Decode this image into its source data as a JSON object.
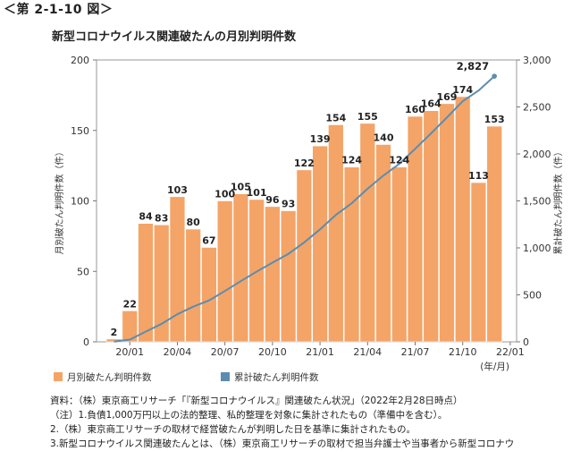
{
  "figure_label": "＜第 2-1-10 図＞",
  "chart_data": {
    "type": "bar+line",
    "title": "新型コロナウイルス関連破たんの月別判明件数",
    "ylabel_left": "月別破たん判明件数（件）",
    "ylabel_right": "累計破たん判明件数（件）",
    "x_unit": "(年/月)",
    "ylim_left": [
      0,
      200
    ],
    "ylim_right": [
      0,
      3000
    ],
    "yticks_left": [
      "0",
      "50",
      "100",
      "150",
      "200"
    ],
    "yticks_right": [
      "0",
      "500",
      "1,000",
      "1,500",
      "2,000",
      "2,500",
      "3,000"
    ],
    "x_tick_labels": [
      {
        "label": "20/01",
        "index": 1
      },
      {
        "label": "20/04",
        "index": 4
      },
      {
        "label": "20/07",
        "index": 7
      },
      {
        "label": "20/10",
        "index": 10
      },
      {
        "label": "21/01",
        "index": 13
      },
      {
        "label": "21/04",
        "index": 16
      },
      {
        "label": "21/07",
        "index": 19
      },
      {
        "label": "21/10",
        "index": 22
      },
      {
        "label": "22/01",
        "index": 25
      }
    ],
    "series": [
      {
        "name": "月別破たん判明件数",
        "kind": "bar",
        "color": "#F4A467",
        "values": [
          2,
          22,
          84,
          83,
          103,
          80,
          67,
          100,
          105,
          101,
          96,
          93,
          122,
          139,
          154,
          124,
          155,
          140,
          124,
          160,
          164,
          169,
          174,
          113,
          153
        ],
        "labels": [
          "2",
          "22",
          "84",
          "83",
          "103",
          "80",
          "67",
          "100",
          "105",
          "101",
          "96",
          "93",
          "122",
          "139",
          "154",
          "124",
          "155",
          "140",
          "124",
          "160",
          "164",
          "169",
          "174",
          "113",
          "153"
        ]
      },
      {
        "name": "累計破たん判明件数",
        "kind": "line",
        "color": "#5B8DB0",
        "values": [
          2,
          24,
          108,
          191,
          294,
          374,
          441,
          541,
          646,
          747,
          843,
          936,
          1058,
          1197,
          1351,
          1475,
          1630,
          1770,
          1894,
          2054,
          2218,
          2387,
          2561,
          2674,
          2827
        ],
        "end_label": "2,827"
      }
    ],
    "legend": [
      {
        "label": "月別破たん判明件数",
        "color": "#F4A467"
      },
      {
        "label": "累計破たん判明件数",
        "color": "#5B8DB0"
      }
    ]
  },
  "notes": [
    "資料：（株）東京商工リサーチ「『新型コロナウイルス』関連破たん状況」（2022年2月28日時点）",
    "（注）1.負債1,000万円以上の法的整理、私的整理を対象に集計されたもの（準備中を含む）。",
    "2.（株）東京商工リサーチの取材で経営破たんが判明した日を基準に集計されたもの。",
    "3.新型コロナウイルス関連破たんとは、（株）東京商工リサーチの取材で担当弁護士や当事者から新型コロナウ"
  ]
}
